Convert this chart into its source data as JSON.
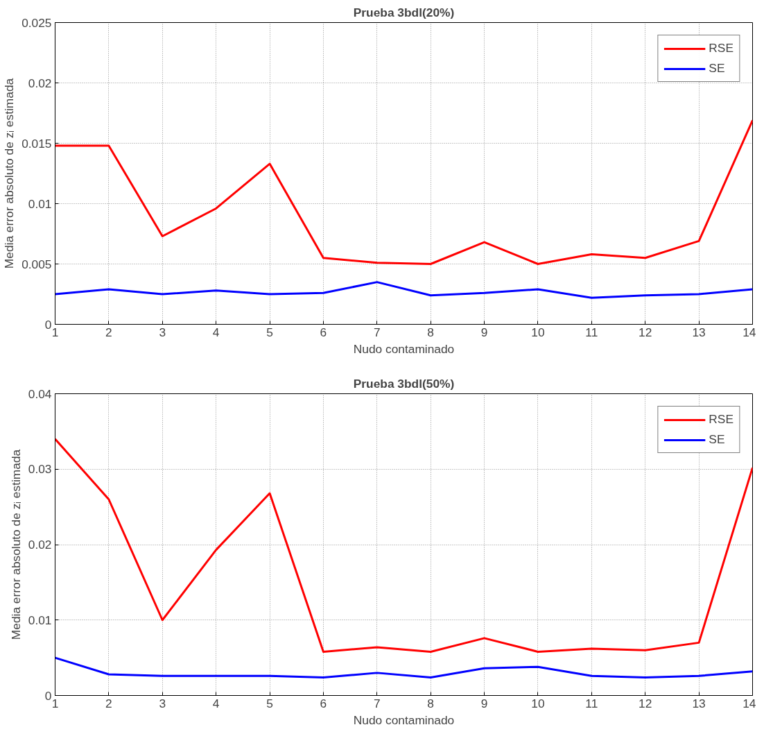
{
  "chart_data": [
    {
      "type": "line",
      "title": "Prueba 3bdl(20%)",
      "xlabel": "Nudo contaminado",
      "ylabel": "Media error absoluto de zᵢ estimada",
      "x": [
        1,
        2,
        3,
        4,
        5,
        6,
        7,
        8,
        9,
        10,
        11,
        12,
        13,
        14
      ],
      "series": [
        {
          "name": "RSE",
          "color": "#ff0000",
          "values": [
            0.0148,
            0.0148,
            0.0073,
            0.0096,
            0.0133,
            0.0055,
            0.0051,
            0.005,
            0.0068,
            0.005,
            0.0058,
            0.0055,
            0.0069,
            0.0169
          ]
        },
        {
          "name": "SE",
          "color": "#0000ff",
          "values": [
            0.0025,
            0.0029,
            0.0025,
            0.0028,
            0.0025,
            0.0026,
            0.0035,
            0.0024,
            0.0026,
            0.0029,
            0.0022,
            0.0024,
            0.0025,
            0.0029
          ]
        }
      ],
      "xlim": [
        1,
        14
      ],
      "xticks": [
        1,
        2,
        3,
        4,
        5,
        6,
        7,
        8,
        9,
        10,
        11,
        12,
        13,
        14
      ],
      "ylim": [
        0,
        0.025
      ],
      "yticks": [
        0,
        0.005,
        0.01,
        0.015,
        0.02,
        0.025
      ],
      "grid": true,
      "legend": "top right",
      "line_style": "solid"
    },
    {
      "type": "line",
      "title": "Prueba 3bdl(50%)",
      "xlabel": "Nudo contaminado",
      "ylabel": "Media error absoluto de zᵢ estimada",
      "x": [
        1,
        2,
        3,
        4,
        5,
        6,
        7,
        8,
        9,
        10,
        11,
        12,
        13,
        14
      ],
      "series": [
        {
          "name": "RSE",
          "color": "#ff0000",
          "values": [
            0.034,
            0.026,
            0.01,
            0.0193,
            0.0268,
            0.0058,
            0.0064,
            0.0058,
            0.0076,
            0.0058,
            0.0062,
            0.006,
            0.007,
            0.0302
          ]
        },
        {
          "name": "SE",
          "color": "#0000ff",
          "values": [
            0.005,
            0.0028,
            0.0026,
            0.0026,
            0.0026,
            0.0024,
            0.003,
            0.0024,
            0.0036,
            0.0038,
            0.0026,
            0.0024,
            0.0026,
            0.0032
          ]
        }
      ],
      "xlim": [
        1,
        14
      ],
      "xticks": [
        1,
        2,
        3,
        4,
        5,
        6,
        7,
        8,
        9,
        10,
        11,
        12,
        13,
        14
      ],
      "ylim": [
        0,
        0.04
      ],
      "yticks": [
        0,
        0.01,
        0.02,
        0.03,
        0.04
      ],
      "grid": true,
      "legend": "top right",
      "line_style": "solid"
    }
  ]
}
